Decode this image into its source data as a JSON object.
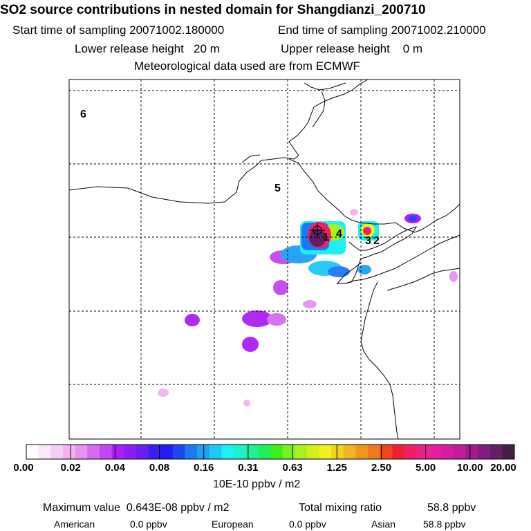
{
  "header": {
    "title": "SO2 source contributions in nested domain for Shangdianzi_200710",
    "start_label": "Start time of sampling 20071002.180000",
    "end_label": "End time of sampling 20071002.210000",
    "lower_label": "Lower release height   20 m",
    "upper_label": "Upper release height    0 m",
    "met_label": "Meteorological data used are from ECMWF"
  },
  "map": {
    "region_labels": [
      "6",
      "5",
      "1",
      "4",
      "3",
      "2"
    ],
    "station_marker": "cross-marker"
  },
  "colorbar": {
    "colors": [
      "#ffffff",
      "#fbe7fb",
      "#f6cdf6",
      "#f0b3f0",
      "#e592f0",
      "#d56cf0",
      "#c545f5",
      "#ac1ef5",
      "#8a1ef5",
      "#6a1ef5",
      "#3c1ef5",
      "#1e1ef0",
      "#1e46f5",
      "#1e78f5",
      "#1ea0f5",
      "#1ec8f5",
      "#1ef0f0",
      "#1ef0c8",
      "#1ef096",
      "#1ef05a",
      "#3cf01e",
      "#78f01e",
      "#aaf01e",
      "#d2f01e",
      "#f0f01e",
      "#f0d21e",
      "#f0b41e",
      "#f0961e",
      "#f0781e",
      "#f0461e",
      "#f01e32",
      "#f01e64",
      "#f01e8c",
      "#e61ea0",
      "#d21ea0",
      "#be1e96",
      "#a01e8c",
      "#821e7d",
      "#641e64",
      "#461e46"
    ],
    "tick_labels": [
      "0.00",
      "0.02",
      "0.04",
      "0.08",
      "0.16",
      "0.31",
      "0.63",
      "1.25",
      "2.50",
      "5.00",
      "10.00",
      "20.00"
    ],
    "units": "10E-10 ppbv / m2"
  },
  "footer": {
    "max_value": "Maximum value  0.643E-08 ppbv / m2",
    "total": "Total mixing ratio",
    "total_value": "58.8 ppbv",
    "american_label": "American",
    "american_value": "0.0 ppbv",
    "european_label": "European",
    "european_value": "0.0 ppbv",
    "asian_label": "Asian",
    "asian_value": "58.8 ppbv"
  }
}
